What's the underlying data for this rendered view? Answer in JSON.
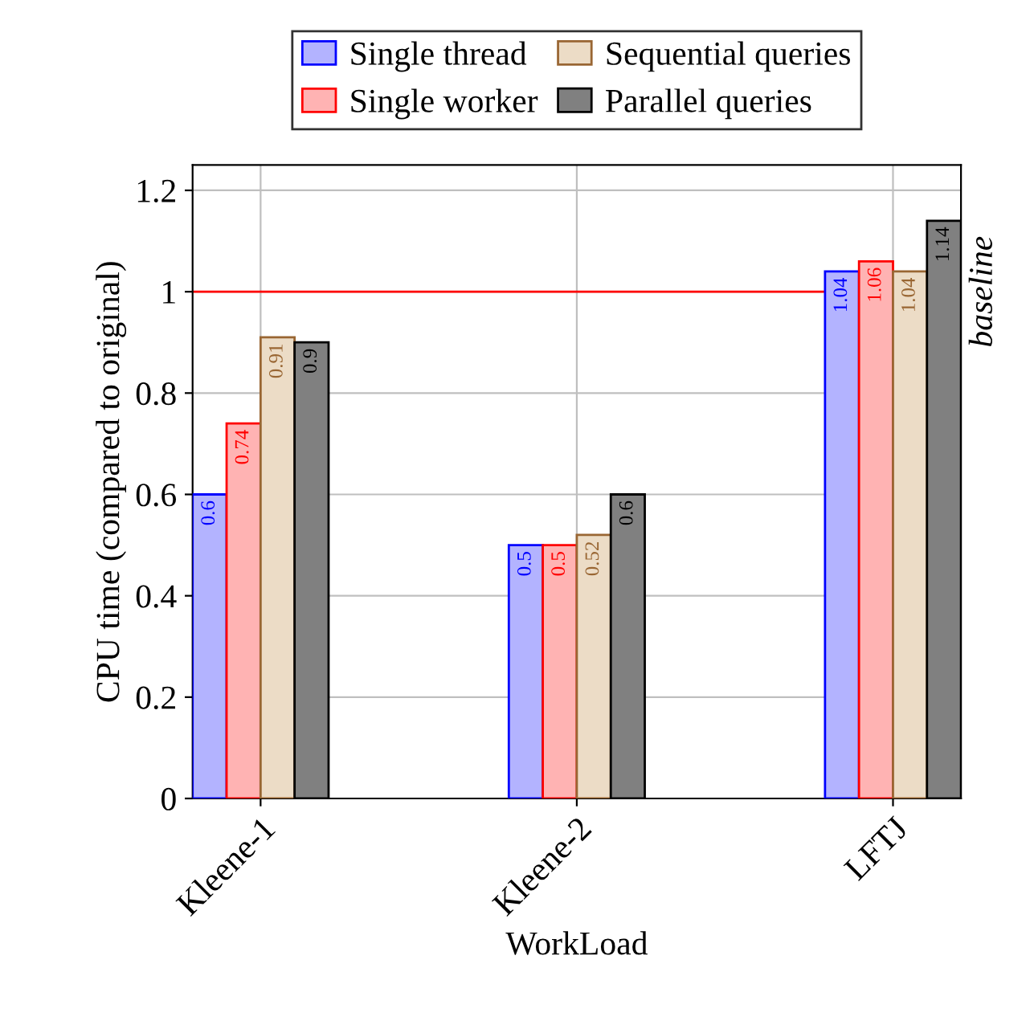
{
  "chart_data": {
    "type": "bar",
    "xlabel": "WorkLoad",
    "ylabel": "CPU time (compared to original)",
    "categories": [
      "Kleene-1",
      "Kleene-2",
      "LFTJ"
    ],
    "series": [
      {
        "name": "Single thread",
        "color": "#b3b3ff",
        "values": [
          0.6,
          0.5,
          1.04
        ]
      },
      {
        "name": "Single worker",
        "color": "#ffb3b3",
        "values": [
          0.74,
          0.5,
          1.06
        ]
      },
      {
        "name": "Sequential queries",
        "color": "#ecdcc6",
        "values": [
          0.91,
          0.52,
          1.04
        ]
      },
      {
        "name": "Parallel queries",
        "color": "#808080",
        "values": [
          0.9,
          0.6,
          1.14
        ]
      }
    ],
    "ylim": [
      0,
      1.25
    ],
    "yticks": [
      0,
      0.2,
      0.4,
      0.6,
      0.8,
      1,
      1.2
    ],
    "ref_lines": [
      {
        "axis": "y",
        "value": 1,
        "label": "baseline",
        "color": "#ff0000"
      }
    ],
    "data_labels": true,
    "grid": true,
    "legend": "top"
  }
}
